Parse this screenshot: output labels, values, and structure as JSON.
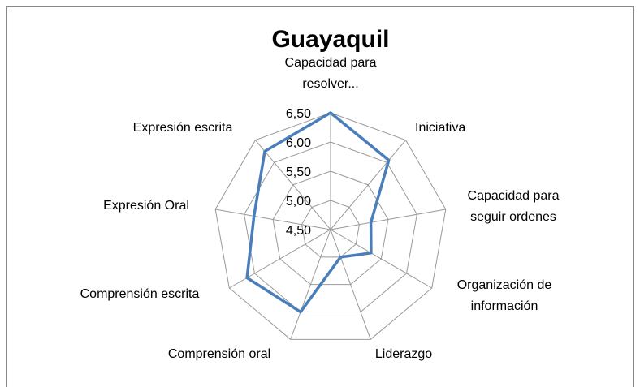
{
  "chart_data": {
    "type": "radar",
    "title": "Guayaquil",
    "categories": [
      "Capacidad para\nresolver...",
      "Iniciativa",
      "Capacidad para\nseguir ordenes",
      "Organización de\ninformación",
      "Liderazgo",
      "Comprensión oral",
      "Comprensión escrita",
      "Expresión Oral",
      "Expresión escrita"
    ],
    "values": [
      6.5,
      6.05,
      5.2,
      5.3,
      5.0,
      6.0,
      6.15,
      5.83,
      6.25
    ],
    "color": "#4a7ebb",
    "ylim": [
      4.5,
      6.5
    ],
    "yticks": [
      {
        "value": 4.5,
        "label": "4,50"
      },
      {
        "value": 5.0,
        "label": "5,00"
      },
      {
        "value": 5.5,
        "label": "5,50"
      },
      {
        "value": 6.0,
        "label": "6,00"
      },
      {
        "value": 6.5,
        "label": "6,50"
      }
    ],
    "grid": true
  }
}
